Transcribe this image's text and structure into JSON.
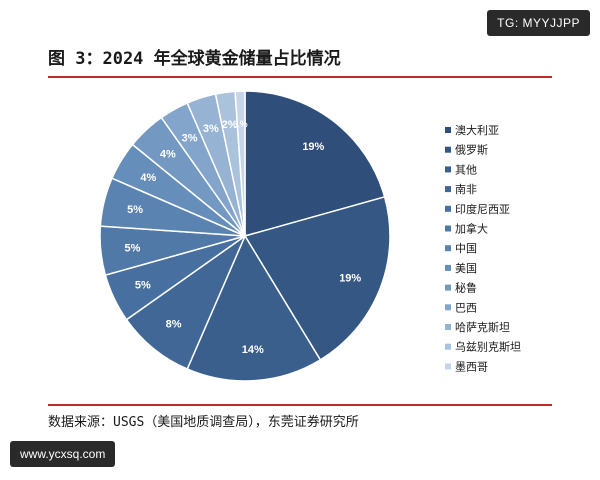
{
  "tg_badge": "TG: MYYJJPP",
  "watermark": "www.ycxsq.com",
  "source": "数据来源：USGS（美国地质调查局），东莞证券研究所",
  "chart_data": {
    "type": "pie",
    "title": "图 3：2024 年全球黄金储量占比情况",
    "legend_position": "right",
    "categories": [
      "澳大利亚",
      "俄罗斯",
      "其他",
      "南非",
      "印度尼西亚",
      "加拿大",
      "中国",
      "美国",
      "秘鲁",
      "巴西",
      "哈萨克斯坦",
      "乌兹别克斯坦",
      "墨西哥"
    ],
    "values": [
      19,
      19,
      14,
      8,
      5,
      5,
      5,
      4,
      4,
      3,
      3,
      2,
      1
    ],
    "labels": [
      "19%",
      "19%",
      "14%",
      "8%",
      "5%",
      "5%",
      "5%",
      "4%",
      "4%",
      "3%",
      "3%",
      "2%",
      "1%"
    ],
    "colors": [
      "#2f4e7a",
      "#355784",
      "#3b5f8d",
      "#406795",
      "#4770a0",
      "#5079a8",
      "#5a83b1",
      "#668eba",
      "#7399c3",
      "#84a5cb",
      "#97b3d3",
      "#abc2dc",
      "#c6d5e7"
    ]
  }
}
